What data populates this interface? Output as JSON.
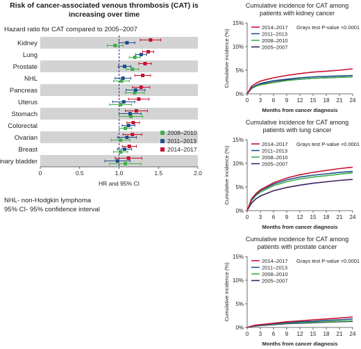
{
  "title_line1": "Risk of cancer-associated venous thrombosis (CAT) is",
  "title_line2": "increasing over time",
  "forest": {
    "subtitle": "Hazard ratio for CAT compared to 2005–2007",
    "footnotes": [
      "NHL- non-Hodgkin lymphoma",
      "95% CI- 95% confidence interval"
    ]
  },
  "colors": {
    "p2005": "#3b1f5e",
    "p2008": "#3fae49",
    "p2011": "#1f4e8c",
    "p2014": "#c8102e",
    "band": "#d3d3d3",
    "refline": "#3b1f8c"
  },
  "chart_data": [
    {
      "type": "forest",
      "xlabel": "HR and 95% CI",
      "xlim": [
        0,
        2.0
      ],
      "xticks": [
        "0",
        "0.5",
        "1.0",
        "1.5",
        "2.0"
      ],
      "reference_line": 1.0,
      "categories": [
        "Kidney",
        "Lung",
        "Prostate",
        "NHL",
        "Pancreas",
        "Uterus",
        "Stomach",
        "Colorectal",
        "Ovarian",
        "Breast",
        "Urinary bladder"
      ],
      "legend": [
        "2008–2010",
        "2011–2013",
        "2014–2017"
      ],
      "series": [
        {
          "name": "2008–2010",
          "color": "#3fae49",
          "hr": [
            0.95,
            1.2,
            1.17,
            1.03,
            1.2,
            1.02,
            1.15,
            1.08,
            1.02,
            1.02,
            1.08
          ],
          "low": [
            0.85,
            1.13,
            1.09,
            0.93,
            1.08,
            0.88,
            1.0,
            1.0,
            0.9,
            0.93,
            0.88
          ],
          "high": [
            1.05,
            1.27,
            1.25,
            1.13,
            1.32,
            1.16,
            1.3,
            1.16,
            1.14,
            1.11,
            1.28
          ]
        },
        {
          "name": "2011–2013",
          "color": "#1f4e8c",
          "hr": [
            1.1,
            1.28,
            1.07,
            1.05,
            1.21,
            1.06,
            1.14,
            1.12,
            1.1,
            1.07,
            0.98
          ],
          "low": [
            1.0,
            1.21,
            0.99,
            0.95,
            1.09,
            0.92,
            1.0,
            1.04,
            0.98,
            0.98,
            0.82
          ],
          "high": [
            1.2,
            1.35,
            1.15,
            1.15,
            1.33,
            1.2,
            1.28,
            1.2,
            1.22,
            1.16,
            1.14
          ]
        },
        {
          "name": "2014–2017",
          "color": "#c8102e",
          "hr": [
            1.4,
            1.37,
            1.33,
            1.3,
            1.28,
            1.25,
            1.22,
            1.18,
            1.17,
            1.13,
            1.12
          ],
          "low": [
            1.27,
            1.3,
            1.25,
            1.2,
            1.17,
            1.12,
            1.08,
            1.1,
            1.05,
            1.04,
            0.95
          ],
          "high": [
            1.53,
            1.44,
            1.41,
            1.4,
            1.39,
            1.38,
            1.36,
            1.26,
            1.29,
            1.22,
            1.29
          ]
        }
      ]
    },
    {
      "type": "line",
      "title_line1": "Cumulative incidence for CAT among",
      "title_line2": "patients with kidney cancer",
      "annotation": "Grays test P-value <0.0001",
      "xlabel": "Months from cancer diagnosis",
      "ylabel": "Cumulative incidence (%)",
      "xlim": [
        0,
        24
      ],
      "ylim": [
        0,
        15
      ],
      "xticks": [
        "0",
        "3",
        "6",
        "9",
        "12",
        "15",
        "18",
        "21",
        "24"
      ],
      "yticks": [
        "0%",
        "5%",
        "10%",
        "15%"
      ],
      "x": [
        0,
        1,
        2,
        3,
        6,
        9,
        12,
        15,
        18,
        21,
        24
      ],
      "series": [
        {
          "name": "2014–2017",
          "color": "#c8102e",
          "values": [
            0,
            1.6,
            2.2,
            2.7,
            3.4,
            3.9,
            4.3,
            4.6,
            4.8,
            5.0,
            5.3
          ]
        },
        {
          "name": "2011–2013",
          "color": "#1f4e8c",
          "values": [
            0,
            1.3,
            1.8,
            2.2,
            2.8,
            3.1,
            3.4,
            3.6,
            3.7,
            3.8,
            3.9
          ]
        },
        {
          "name": "2008–2010",
          "color": "#3fae49",
          "values": [
            0,
            1.1,
            1.6,
            1.9,
            2.4,
            2.8,
            3.1,
            3.3,
            3.4,
            3.5,
            3.6
          ]
        },
        {
          "name": "2005–2007",
          "color": "#3b1f5e",
          "values": [
            0,
            1.2,
            1.7,
            2.0,
            2.5,
            2.9,
            3.1,
            3.3,
            3.4,
            3.5,
            3.6
          ]
        }
      ]
    },
    {
      "type": "line",
      "title_line1": "Cumulative incidence for CAT among",
      "title_line2": "patients with lung cancer",
      "annotation": "Grays test P-value <0.0001",
      "xlabel": "Months from cancer diagnosis",
      "ylabel": "Cumulative incidence (%)",
      "xlim": [
        0,
        24
      ],
      "ylim": [
        0,
        15
      ],
      "xticks": [
        "0",
        "3",
        "6",
        "9",
        "12",
        "15",
        "18",
        "21",
        "24"
      ],
      "yticks": [
        "0%",
        "5%",
        "10%",
        "15%"
      ],
      "x": [
        0,
        1,
        2,
        3,
        6,
        9,
        12,
        15,
        18,
        21,
        24
      ],
      "series": [
        {
          "name": "2014–2017",
          "color": "#c8102e",
          "values": [
            0,
            2.5,
            3.6,
            4.4,
            5.9,
            6.9,
            7.6,
            8.1,
            8.5,
            8.9,
            9.2
          ]
        },
        {
          "name": "2011–2013",
          "color": "#1f4e8c",
          "values": [
            0,
            2.3,
            3.4,
            4.2,
            5.6,
            6.5,
            7.1,
            7.5,
            7.8,
            8.1,
            8.3
          ]
        },
        {
          "name": "2008–2010",
          "color": "#3fae49",
          "values": [
            0,
            2.1,
            3.2,
            3.9,
            5.3,
            6.1,
            6.7,
            7.1,
            7.4,
            7.7,
            8.0
          ]
        },
        {
          "name": "2005–2007",
          "color": "#3b1f5e",
          "values": [
            0,
            1.6,
            2.5,
            3.1,
            4.2,
            4.9,
            5.4,
            5.8,
            6.1,
            6.4,
            6.6
          ]
        }
      ]
    },
    {
      "type": "line",
      "title_line1": "Cumulative incidence for CAT among",
      "title_line2": "patients with prostate cancer",
      "annotation": "Grays test P-value <0.0001",
      "xlabel": "Months from cancer diagnosis",
      "ylabel": "Cumulative incidence (%)",
      "xlim": [
        0,
        24
      ],
      "ylim": [
        0,
        15
      ],
      "xticks": [
        "0",
        "3",
        "6",
        "9",
        "12",
        "15",
        "18",
        "21",
        "24"
      ],
      "yticks": [
        "0%",
        "5%",
        "10%",
        "15%"
      ],
      "x": [
        0,
        1,
        2,
        3,
        6,
        9,
        12,
        15,
        18,
        21,
        24
      ],
      "series": [
        {
          "name": "2014–2017",
          "color": "#c8102e",
          "values": [
            0,
            0.3,
            0.5,
            0.6,
            0.9,
            1.2,
            1.4,
            1.6,
            1.8,
            2.0,
            2.2
          ]
        },
        {
          "name": "2011–2013",
          "color": "#1f4e8c",
          "values": [
            0,
            0.25,
            0.4,
            0.5,
            0.8,
            1.0,
            1.2,
            1.3,
            1.5,
            1.6,
            1.8
          ]
        },
        {
          "name": "2008–2010",
          "color": "#3fae49",
          "values": [
            0,
            0.2,
            0.35,
            0.45,
            0.7,
            0.9,
            1.0,
            1.1,
            1.2,
            1.3,
            1.4
          ]
        },
        {
          "name": "2005–2007",
          "color": "#3b1f5e",
          "values": [
            0,
            0.2,
            0.3,
            0.4,
            0.6,
            0.8,
            0.9,
            1.0,
            1.1,
            1.2,
            1.3
          ]
        }
      ]
    }
  ]
}
